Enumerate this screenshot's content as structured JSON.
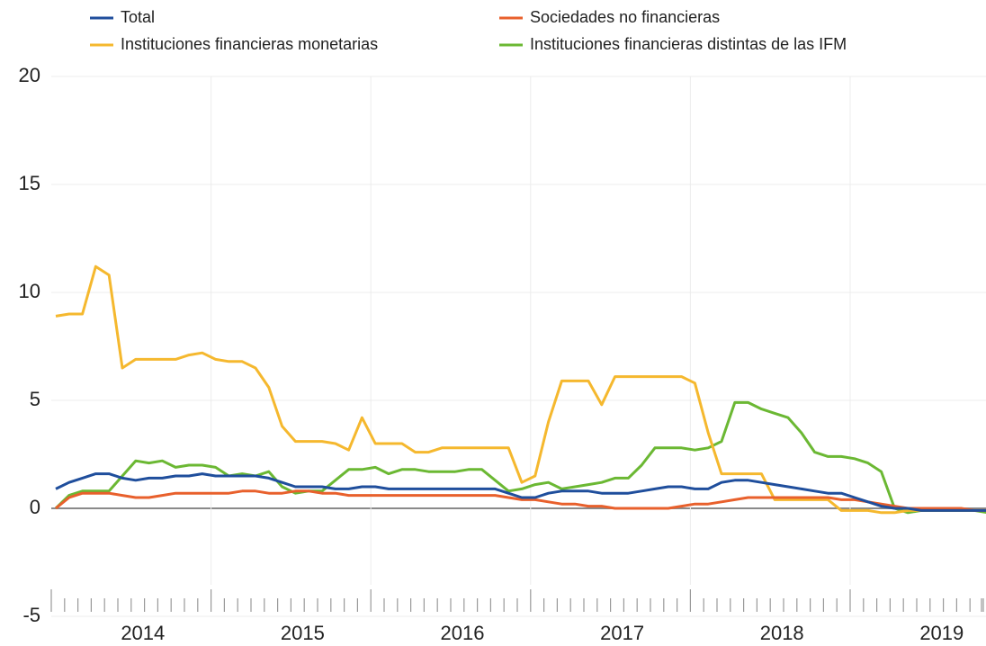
{
  "chart_data": {
    "type": "line",
    "categories": [
      null,
      null,
      null,
      null,
      null,
      null,
      "2014",
      null,
      null,
      null,
      null,
      null,
      null,
      null,
      null,
      null,
      null,
      null,
      "2015",
      null,
      null,
      null,
      null,
      null,
      null,
      null,
      null,
      null,
      null,
      null,
      "2016",
      null,
      null,
      null,
      null,
      null,
      null,
      null,
      null,
      null,
      null,
      null,
      "2017",
      null,
      null,
      null,
      null,
      null,
      null,
      null,
      null,
      null,
      null,
      null,
      "2018",
      null,
      null,
      null,
      null,
      null,
      null,
      null,
      null,
      null,
      null,
      null,
      "2019",
      null,
      null,
      null,
      null
    ],
    "series": [
      {
        "name": "Total",
        "color": "#1f4e9c",
        "values": [
          0.9,
          1.2,
          1.4,
          1.6,
          1.6,
          1.4,
          1.3,
          1.4,
          1.4,
          1.5,
          1.5,
          1.6,
          1.5,
          1.5,
          1.5,
          1.5,
          1.4,
          1.2,
          1.0,
          1.0,
          1.0,
          0.9,
          0.9,
          1.0,
          1.0,
          0.9,
          0.9,
          0.9,
          0.9,
          0.9,
          0.9,
          0.9,
          0.9,
          0.9,
          0.7,
          0.5,
          0.5,
          0.7,
          0.8,
          0.8,
          0.8,
          0.7,
          0.7,
          0.7,
          0.8,
          0.9,
          1.0,
          1.0,
          0.9,
          0.9,
          1.2,
          1.3,
          1.3,
          1.2,
          1.1,
          1.0,
          0.9,
          0.8,
          0.7,
          0.7,
          0.5,
          0.3,
          0.1,
          0.0,
          0.0,
          -0.1,
          -0.1,
          -0.1,
          -0.1,
          -0.1,
          -0.1
        ]
      },
      {
        "name": "Sociedades no financieras",
        "color": "#e8602c",
        "values": [
          0,
          0.5,
          0.7,
          0.7,
          0.7,
          0.6,
          0.5,
          0.5,
          0.6,
          0.7,
          0.7,
          0.7,
          0.7,
          0.7,
          0.8,
          0.8,
          0.7,
          0.7,
          0.8,
          0.8,
          0.7,
          0.7,
          0.6,
          0.6,
          0.6,
          0.6,
          0.6,
          0.6,
          0.6,
          0.6,
          0.6,
          0.6,
          0.6,
          0.6,
          0.5,
          0.4,
          0.4,
          0.3,
          0.2,
          0.2,
          0.1,
          0.1,
          0,
          0,
          0,
          0,
          0,
          0.1,
          0.2,
          0.2,
          0.3,
          0.4,
          0.5,
          0.5,
          0.5,
          0.5,
          0.5,
          0.5,
          0.5,
          0.4,
          0.4,
          0.3,
          0.2,
          0.1,
          0,
          0,
          0,
          0,
          0,
          -0.1,
          -0.1
        ]
      },
      {
        "name": "Instituciones financieras monetarias",
        "color": "#f5b82e",
        "values": [
          8.9,
          9.0,
          9.0,
          11.2,
          10.8,
          6.5,
          6.9,
          6.9,
          6.9,
          6.9,
          7.1,
          7.2,
          6.9,
          6.8,
          6.8,
          6.5,
          5.6,
          3.8,
          3.1,
          3.1,
          3.1,
          3.0,
          2.7,
          4.2,
          3.0,
          3.0,
          3.0,
          2.6,
          2.6,
          2.8,
          2.8,
          2.8,
          2.8,
          2.8,
          2.8,
          1.2,
          1.5,
          4.0,
          5.9,
          5.9,
          5.9,
          4.8,
          6.1,
          6.1,
          6.1,
          6.1,
          6.1,
          6.1,
          5.8,
          3.5,
          1.6,
          1.6,
          1.6,
          1.6,
          0.4,
          0.4,
          0.4,
          0.4,
          0.4,
          -0.1,
          -0.1,
          -0.1,
          -0.2,
          -0.2,
          -0.1,
          -0.1,
          -0.1,
          -0.1,
          -0.1,
          -0.1,
          -0.1
        ]
      },
      {
        "name": "Instituciones financieras distintas de las IFM",
        "color": "#6bb833",
        "values": [
          0,
          0.6,
          0.8,
          0.8,
          0.8,
          1.5,
          2.2,
          2.1,
          2.2,
          1.9,
          2.0,
          2.0,
          1.9,
          1.5,
          1.6,
          1.5,
          1.7,
          1.0,
          0.7,
          0.8,
          0.8,
          1.3,
          1.8,
          1.8,
          1.9,
          1.6,
          1.8,
          1.8,
          1.7,
          1.7,
          1.7,
          1.8,
          1.8,
          1.3,
          0.8,
          0.9,
          1.1,
          1.2,
          0.9,
          1.0,
          1.1,
          1.2,
          1.4,
          1.4,
          2.0,
          2.8,
          2.8,
          2.8,
          2.7,
          2.8,
          3.1,
          4.9,
          4.9,
          4.6,
          4.4,
          4.2,
          3.5,
          2.6,
          2.4,
          2.4,
          2.3,
          2.1,
          1.7,
          0,
          -0.2,
          -0.1,
          -0.1,
          -0.1,
          -0.1,
          -0.1,
          -0.2
        ]
      }
    ],
    "ylim": [
      -5,
      20
    ],
    "yticks": [
      -5,
      0,
      5,
      10,
      15,
      20
    ],
    "grid": true
  }
}
